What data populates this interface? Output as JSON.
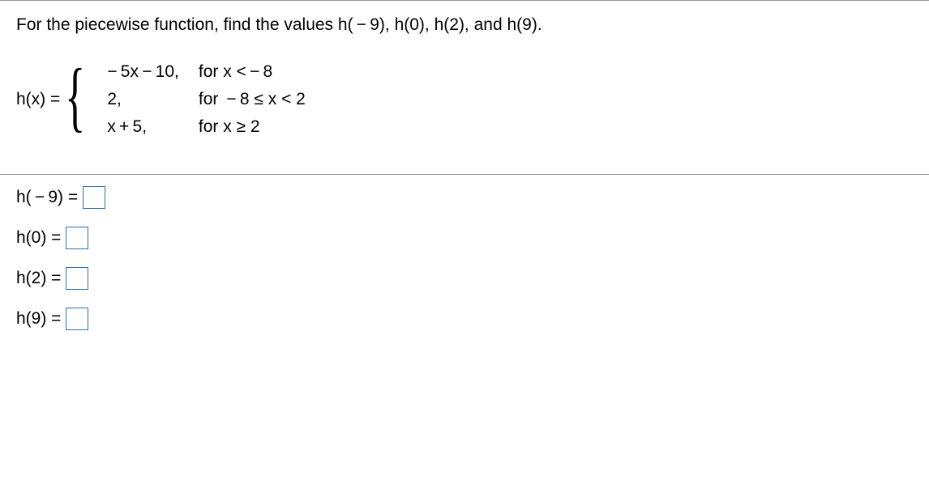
{
  "question": "For the piecewise function, find the values h( − 9), h(0), h(2), and h(9).",
  "function_label": "h(x) =",
  "brace_glyph": "{",
  "cases": [
    {
      "expr": "− 5x − 10,",
      "cond": "for x < − 8"
    },
    {
      "expr": "2,",
      "cond": "for  − 8 ≤ x < 2"
    },
    {
      "expr": "x + 5,",
      "cond": "for x ≥ 2"
    }
  ],
  "answers": [
    {
      "label": "h( − 9) =",
      "value": ""
    },
    {
      "label": "h(0) =",
      "value": ""
    },
    {
      "label": "h(2) =",
      "value": ""
    },
    {
      "label": "h(9) =",
      "value": ""
    }
  ],
  "colors": {
    "input_border": "#2f6fb3",
    "separator": "#999999"
  }
}
